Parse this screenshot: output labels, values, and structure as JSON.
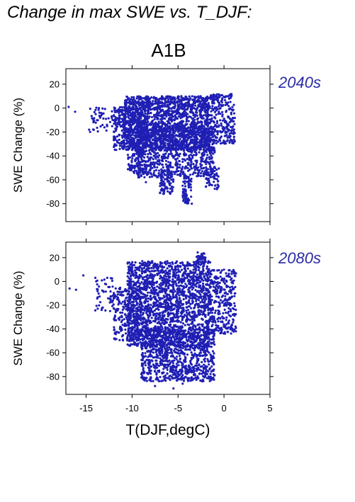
{
  "figure": {
    "title": "Change in max SWE vs. T_DJF:",
    "scenario": "A1B",
    "point_color": "#1f1fb4",
    "period_label_color": "#2b2ba8"
  },
  "chart_data": [
    {
      "type": "scatter",
      "period": "2040s",
      "xlabel": "T(DJF,degC)",
      "ylabel": "SWE Change (%)",
      "xlim": [
        -17.2,
        5
      ],
      "ylim": [
        -95,
        33
      ],
      "xticks": [
        -15,
        -10,
        -5,
        0,
        5
      ],
      "yticks": [
        20,
        0,
        -20,
        -40,
        -60,
        -80
      ],
      "clusters": [
        {
          "x": [
            -11,
            -1.5
          ],
          "y": [
            -35,
            10
          ],
          "n": 1700
        },
        {
          "x": [
            -9.5,
            -1
          ],
          "y": [
            -58,
            -15
          ],
          "n": 900
        },
        {
          "x": [
            -12,
            -8.5
          ],
          "y": [
            -35,
            0
          ],
          "n": 260
        },
        {
          "x": [
            -15,
            -11
          ],
          "y": [
            -20,
            1
          ],
          "n": 70
        },
        {
          "x": [
            -1.5,
            1.2
          ],
          "y": [
            -30,
            12
          ],
          "n": 260
        },
        {
          "x": [
            -7,
            -5.5
          ],
          "y": [
            -73,
            -55
          ],
          "n": 70
        },
        {
          "x": [
            -4.5,
            -3.5
          ],
          "y": [
            -80,
            -55
          ],
          "n": 70
        },
        {
          "x": [
            -2,
            -0.5
          ],
          "y": [
            -68,
            -50
          ],
          "n": 50
        },
        {
          "x": [
            -10.5,
            -8.5
          ],
          "y": [
            -55,
            -35
          ],
          "n": 80
        }
      ],
      "extra_points": [
        [
          -16.9,
          1
        ],
        [
          -16.2,
          -3
        ],
        [
          -3.5,
          -80
        ],
        [
          -8.5,
          -62
        ],
        [
          -9.3,
          -58
        ]
      ]
    },
    {
      "type": "scatter",
      "period": "2080s",
      "xlabel": "T(DJF,degC)",
      "ylabel": "SWE Change (%)",
      "xlim": [
        -17.2,
        5
      ],
      "ylim": [
        -95,
        33
      ],
      "xticks": [
        -15,
        -10,
        -5,
        0,
        5
      ],
      "yticks": [
        20,
        0,
        -20,
        -40,
        -60,
        -80
      ],
      "clusters": [
        {
          "x": [
            -10.5,
            -1.5
          ],
          "y": [
            -55,
            17
          ],
          "n": 1900
        },
        {
          "x": [
            -9,
            -1
          ],
          "y": [
            -84,
            -40
          ],
          "n": 900
        },
        {
          "x": [
            -12,
            -9
          ],
          "y": [
            -50,
            -5
          ],
          "n": 280
        },
        {
          "x": [
            -14,
            -12
          ],
          "y": [
            -25,
            3
          ],
          "n": 50
        },
        {
          "x": [
            -3,
            -2
          ],
          "y": [
            16,
            25
          ],
          "n": 40
        },
        {
          "x": [
            -1.5,
            1.3
          ],
          "y": [
            -45,
            10
          ],
          "n": 300
        }
      ],
      "extra_points": [
        [
          -16.8,
          -6
        ],
        [
          -16.1,
          -7
        ],
        [
          -15.3,
          5
        ],
        [
          -14,
          3
        ],
        [
          -12.7,
          3
        ],
        [
          -5.5,
          -90
        ],
        [
          -7.5,
          -88
        ],
        [
          -4.5,
          -86
        ]
      ]
    }
  ]
}
